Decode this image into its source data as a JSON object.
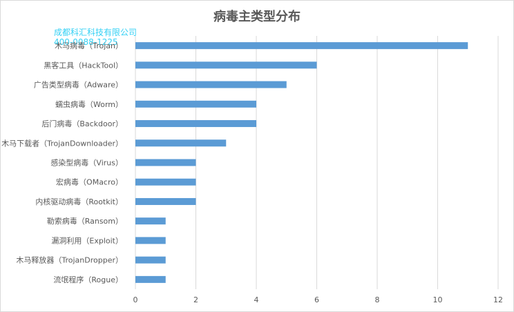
{
  "watermark": {
    "line1": "成都科汇科技有限公司",
    "line2": "400-0088-1225"
  },
  "chart_data": {
    "type": "bar",
    "orientation": "horizontal",
    "title": "病毒主类型分布",
    "categories": [
      "木马病毒（Trojan）",
      "黑客工具（HackTool）",
      "广告类型病毒（Adware）",
      "蠕虫病毒（Worm）",
      "后门病毒（Backdoor）",
      "木马下载者（TrojanDownloader）",
      "感染型病毒（Virus）",
      "宏病毒（OMacro）",
      "内核驱动病毒（Rootkit）",
      "勒索病毒（Ransom）",
      "漏洞利用（Exploit）",
      "木马释放器（TrojanDropper）",
      "流氓程序（Rogue）"
    ],
    "values": [
      11,
      6,
      5,
      4,
      4,
      3,
      2,
      2,
      2,
      1,
      1,
      1,
      1
    ],
    "xlim": [
      0,
      12
    ],
    "xticks": [
      0,
      2,
      4,
      6,
      8,
      10,
      12
    ],
    "xlabel": "",
    "ylabel": "",
    "grid": "vertical",
    "bar_color": "#5b9bd5",
    "grid_color": "#d9d9d9",
    "legend": "none"
  }
}
